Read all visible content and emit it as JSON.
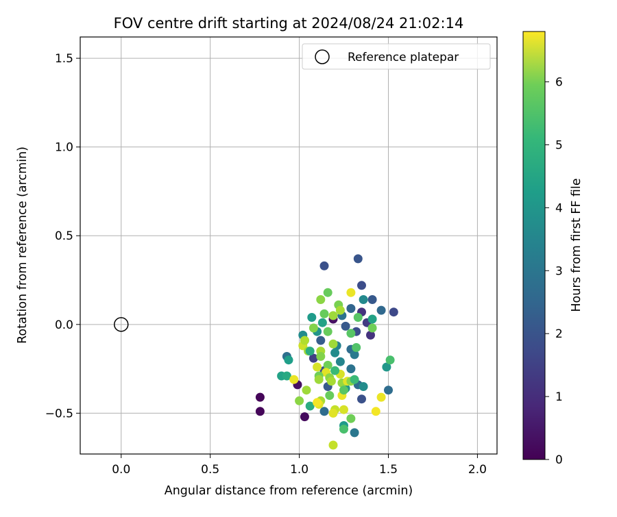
{
  "chart_data": {
    "type": "scatter",
    "title": "FOV centre drift starting at 2024/08/24 21:02:14",
    "xlabel": "Angular distance from reference (arcmin)",
    "ylabel": "Rotation from reference (arcmin)",
    "xlim": [
      -0.23,
      2.11
    ],
    "ylim": [
      -0.73,
      1.62
    ],
    "x_ticks": [
      0.0,
      0.5,
      1.0,
      1.5,
      2.0
    ],
    "x_tick_labels": [
      "0.0",
      "0.5",
      "1.0",
      "1.5",
      "2.0"
    ],
    "y_ticks": [
      -0.5,
      0.0,
      0.5,
      1.0,
      1.5
    ],
    "y_tick_labels": [
      "−0.5",
      "0.0",
      "0.5",
      "1.0",
      "1.5"
    ],
    "grid": true,
    "legend": {
      "position": "top-right",
      "entries": [
        "Reference platepar"
      ]
    },
    "colorbar": {
      "label": "Hours from first FF file",
      "colormap": "viridis",
      "range": [
        0,
        6.8
      ],
      "ticks": [
        0,
        1,
        2,
        3,
        4,
        5,
        6
      ],
      "tick_labels": [
        "0",
        "1",
        "2",
        "3",
        "4",
        "5",
        "6"
      ]
    },
    "reference_point": {
      "x": 0.0,
      "y": 0.0
    },
    "points": [
      {
        "x": 0.78,
        "y": -0.41,
        "h": 0.1
      },
      {
        "x": 0.78,
        "y": -0.49,
        "h": 0.1
      },
      {
        "x": 1.03,
        "y": -0.52,
        "h": 0.2
      },
      {
        "x": 0.99,
        "y": -0.34,
        "h": 0.3
      },
      {
        "x": 1.19,
        "y": 0.03,
        "h": 0.3
      },
      {
        "x": 1.14,
        "y": 0.33,
        "h": 1.7
      },
      {
        "x": 1.33,
        "y": 0.37,
        "h": 1.8
      },
      {
        "x": 1.35,
        "y": 0.22,
        "h": 1.6
      },
      {
        "x": 1.35,
        "y": 0.07,
        "h": 1.0
      },
      {
        "x": 1.38,
        "y": 0.01,
        "h": 1.2
      },
      {
        "x": 1.4,
        "y": -0.06,
        "h": 1.0
      },
      {
        "x": 1.41,
        "y": 0.14,
        "h": 1.9
      },
      {
        "x": 1.46,
        "y": 0.08,
        "h": 2.3
      },
      {
        "x": 1.53,
        "y": 0.07,
        "h": 1.5
      },
      {
        "x": 1.36,
        "y": 0.14,
        "h": 3.2
      },
      {
        "x": 1.29,
        "y": 0.09,
        "h": 2.2
      },
      {
        "x": 1.26,
        "y": -0.01,
        "h": 1.9
      },
      {
        "x": 1.32,
        "y": -0.04,
        "h": 1.6
      },
      {
        "x": 1.29,
        "y": -0.14,
        "h": 2.4
      },
      {
        "x": 1.31,
        "y": -0.17,
        "h": 2.8
      },
      {
        "x": 1.24,
        "y": 0.05,
        "h": 2.6
      },
      {
        "x": 1.21,
        "y": -0.12,
        "h": 3.0
      },
      {
        "x": 1.2,
        "y": -0.16,
        "h": 3.3
      },
      {
        "x": 1.12,
        "y": -0.09,
        "h": 2.0
      },
      {
        "x": 1.08,
        "y": -0.19,
        "h": 1.3
      },
      {
        "x": 1.14,
        "y": -0.26,
        "h": 1.7
      },
      {
        "x": 1.16,
        "y": -0.35,
        "h": 1.9
      },
      {
        "x": 1.23,
        "y": -0.21,
        "h": 3.1
      },
      {
        "x": 1.29,
        "y": -0.25,
        "h": 2.6
      },
      {
        "x": 1.26,
        "y": -0.36,
        "h": 3.5
      },
      {
        "x": 1.35,
        "y": -0.42,
        "h": 1.7
      },
      {
        "x": 1.33,
        "y": -0.34,
        "h": 2.4
      },
      {
        "x": 1.36,
        "y": -0.35,
        "h": 3.3
      },
      {
        "x": 1.31,
        "y": -0.61,
        "h": 2.7
      },
      {
        "x": 1.25,
        "y": -0.57,
        "h": 3.7
      },
      {
        "x": 1.14,
        "y": -0.49,
        "h": 2.4
      },
      {
        "x": 1.49,
        "y": -0.24,
        "h": 3.6
      },
      {
        "x": 1.5,
        "y": -0.37,
        "h": 2.4
      },
      {
        "x": 1.51,
        "y": -0.2,
        "h": 4.8
      },
      {
        "x": 0.93,
        "y": -0.18,
        "h": 2.5
      },
      {
        "x": 0.94,
        "y": -0.2,
        "h": 3.8
      },
      {
        "x": 0.9,
        "y": -0.29,
        "h": 3.9
      },
      {
        "x": 0.93,
        "y": -0.29,
        "h": 4.1
      },
      {
        "x": 1.02,
        "y": -0.06,
        "h": 3.3
      },
      {
        "x": 1.03,
        "y": -0.09,
        "h": 3.8
      },
      {
        "x": 1.07,
        "y": 0.04,
        "h": 3.7
      },
      {
        "x": 1.1,
        "y": -0.04,
        "h": 3.5
      },
      {
        "x": 1.13,
        "y": 0.01,
        "h": 3.9
      },
      {
        "x": 1.14,
        "y": 0.06,
        "h": 5.2
      },
      {
        "x": 1.12,
        "y": 0.14,
        "h": 5.6
      },
      {
        "x": 1.16,
        "y": 0.18,
        "h": 5.2
      },
      {
        "x": 1.22,
        "y": 0.11,
        "h": 5.4
      },
      {
        "x": 1.23,
        "y": 0.08,
        "h": 5.9
      },
      {
        "x": 1.33,
        "y": 0.04,
        "h": 5.0
      },
      {
        "x": 1.29,
        "y": -0.05,
        "h": 5.0
      },
      {
        "x": 1.32,
        "y": -0.13,
        "h": 4.9
      },
      {
        "x": 1.29,
        "y": 0.18,
        "h": 6.6
      },
      {
        "x": 1.19,
        "y": 0.05,
        "h": 5.8
      },
      {
        "x": 1.16,
        "y": -0.04,
        "h": 5.2
      },
      {
        "x": 1.08,
        "y": -0.02,
        "h": 5.5
      },
      {
        "x": 1.02,
        "y": -0.12,
        "h": 6.3
      },
      {
        "x": 1.03,
        "y": -0.09,
        "h": 6.0
      },
      {
        "x": 1.05,
        "y": -0.15,
        "h": 5.8
      },
      {
        "x": 1.12,
        "y": -0.15,
        "h": 5.9
      },
      {
        "x": 1.12,
        "y": -0.18,
        "h": 5.5
      },
      {
        "x": 1.19,
        "y": -0.11,
        "h": 5.8
      },
      {
        "x": 1.16,
        "y": -0.23,
        "h": 5.3
      },
      {
        "x": 1.1,
        "y": -0.24,
        "h": 6.4
      },
      {
        "x": 1.15,
        "y": -0.27,
        "h": 6.5
      },
      {
        "x": 1.11,
        "y": -0.29,
        "h": 5.3
      },
      {
        "x": 1.11,
        "y": -0.31,
        "h": 5.8
      },
      {
        "x": 1.17,
        "y": -0.3,
        "h": 5.6
      },
      {
        "x": 1.18,
        "y": -0.32,
        "h": 5.9
      },
      {
        "x": 1.23,
        "y": -0.28,
        "h": 6.4
      },
      {
        "x": 1.24,
        "y": -0.33,
        "h": 5.7
      },
      {
        "x": 1.27,
        "y": -0.32,
        "h": 6.5
      },
      {
        "x": 1.29,
        "y": -0.32,
        "h": 5.6
      },
      {
        "x": 1.31,
        "y": -0.31,
        "h": 4.6
      },
      {
        "x": 0.97,
        "y": -0.31,
        "h": 6.6
      },
      {
        "x": 1.0,
        "y": -0.43,
        "h": 5.6
      },
      {
        "x": 1.04,
        "y": -0.37,
        "h": 5.8
      },
      {
        "x": 1.06,
        "y": -0.46,
        "h": 4.2
      },
      {
        "x": 1.12,
        "y": -0.43,
        "h": 5.9
      },
      {
        "x": 1.11,
        "y": -0.45,
        "h": 6.5
      },
      {
        "x": 1.1,
        "y": -0.44,
        "h": 6.7
      },
      {
        "x": 1.17,
        "y": -0.4,
        "h": 5.2
      },
      {
        "x": 1.24,
        "y": -0.4,
        "h": 6.6
      },
      {
        "x": 1.25,
        "y": -0.37,
        "h": 5.0
      },
      {
        "x": 1.2,
        "y": -0.48,
        "h": 6.2
      },
      {
        "x": 1.19,
        "y": -0.5,
        "h": 6.5
      },
      {
        "x": 1.25,
        "y": -0.48,
        "h": 6.4
      },
      {
        "x": 1.25,
        "y": -0.59,
        "h": 4.8
      },
      {
        "x": 1.29,
        "y": -0.53,
        "h": 5.3
      },
      {
        "x": 1.43,
        "y": -0.49,
        "h": 6.7
      },
      {
        "x": 1.46,
        "y": -0.41,
        "h": 6.6
      },
      {
        "x": 1.19,
        "y": -0.68,
        "h": 6.2
      },
      {
        "x": 1.41,
        "y": 0.03,
        "h": 3.9
      },
      {
        "x": 1.41,
        "y": -0.02,
        "h": 5.3
      },
      {
        "x": 1.06,
        "y": -0.15,
        "h": 4.2
      },
      {
        "x": 1.2,
        "y": -0.26,
        "h": 4.6
      }
    ]
  }
}
